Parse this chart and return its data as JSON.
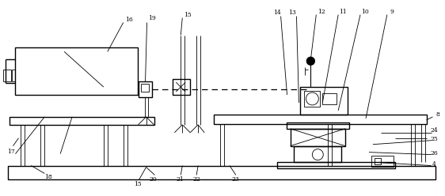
{
  "fig_width": 5.62,
  "fig_height": 2.48,
  "dpi": 100,
  "bg_color": "#ffffff",
  "line_color": "#000000",
  "lw": 1.0,
  "tlw": 0.6,
  "fs": 5.5
}
